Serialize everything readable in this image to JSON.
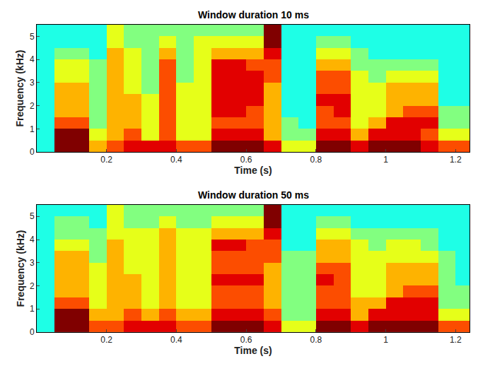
{
  "chart_data": [
    {
      "type": "heatmap",
      "title": "Window duration 10 ms",
      "x_label": "Time (s)",
      "y_label": "Frequency (kHz)",
      "color": "Jet",
      "zlim": [
        0,
        10
      ],
      "xlim": [
        0,
        1.24
      ],
      "ylim": [
        0,
        5.5
      ],
      "xticks": [
        0.2,
        0.4,
        0.6,
        0.8,
        1,
        1.2
      ],
      "yticks": [
        0,
        1,
        2,
        3,
        4,
        5
      ],
      "x": [
        0.025,
        0.075,
        0.125,
        0.175,
        0.225,
        0.275,
        0.325,
        0.375,
        0.425,
        0.475,
        0.525,
        0.575,
        0.625,
        0.675,
        0.725,
        0.775,
        0.825,
        0.875,
        0.925,
        0.975,
        1.025,
        1.075,
        1.125,
        1.175,
        1.225
      ],
      "y": [
        0.25,
        0.75,
        1.25,
        1.75,
        2.25,
        2.75,
        3.25,
        3.75,
        4.25,
        4.75,
        5.25
      ],
      "z": [
        [
          4,
          10,
          10,
          7,
          8,
          9,
          9,
          9,
          8,
          8,
          10,
          10,
          10,
          9,
          6,
          6,
          10,
          10,
          9,
          10,
          10,
          10,
          9,
          8,
          8
        ],
        [
          4,
          10,
          10,
          6,
          7,
          8,
          6,
          8,
          6,
          6,
          9,
          9,
          9,
          7,
          5,
          5,
          9,
          9,
          7,
          9,
          9,
          9,
          8,
          6,
          6
        ],
        [
          4,
          8,
          8,
          5,
          7,
          7,
          6,
          8,
          6,
          6,
          8,
          8,
          8,
          7,
          5,
          4,
          8,
          8,
          6,
          7,
          9,
          9,
          9,
          5,
          5
        ],
        [
          4,
          7,
          7,
          5,
          7,
          7,
          6,
          8,
          6,
          6,
          9,
          9,
          8,
          7,
          4,
          4,
          8,
          9,
          6,
          6,
          7,
          8,
          8,
          5,
          5
        ],
        [
          4,
          7,
          7,
          5,
          7,
          7,
          6,
          8,
          6,
          6,
          9,
          9,
          9,
          7,
          4,
          4,
          9,
          9,
          6,
          6,
          7,
          7,
          7,
          4,
          4
        ],
        [
          4,
          7,
          7,
          5,
          7,
          6,
          5,
          8,
          6,
          6,
          9,
          9,
          9,
          7,
          4,
          4,
          8,
          8,
          6,
          6,
          7,
          7,
          7,
          4,
          4
        ],
        [
          4,
          6,
          6,
          5,
          7,
          6,
          5,
          8,
          5,
          6,
          9,
          9,
          9,
          8,
          4,
          4,
          8,
          8,
          6,
          5,
          6,
          6,
          6,
          4,
          4
        ],
        [
          4,
          6,
          6,
          5,
          7,
          6,
          5,
          8,
          5,
          6,
          9,
          9,
          8,
          8,
          4,
          4,
          7,
          7,
          5,
          5,
          5,
          5,
          5,
          4,
          4
        ],
        [
          4,
          5,
          5,
          4,
          7,
          6,
          5,
          7,
          5,
          6,
          7,
          7,
          7,
          9,
          4,
          4,
          6,
          6,
          5,
          4,
          4,
          4,
          4,
          4,
          4
        ],
        [
          4,
          4,
          4,
          4,
          6,
          5,
          5,
          6,
          5,
          6,
          6,
          6,
          6,
          10,
          4,
          4,
          5,
          5,
          4,
          4,
          4,
          4,
          4,
          4,
          4
        ],
        [
          4,
          4,
          4,
          4,
          6,
          5,
          5,
          5,
          5,
          5,
          5,
          5,
          5,
          10,
          4,
          4,
          4,
          4,
          4,
          4,
          4,
          4,
          4,
          4,
          4
        ]
      ]
    },
    {
      "type": "heatmap",
      "title": "Window duration 50 ms",
      "x_label": "Time (s)",
      "y_label": "Frequency (kHz)",
      "color": "Jet",
      "zlim": [
        0,
        10
      ],
      "xlim": [
        0,
        1.24
      ],
      "ylim": [
        0,
        5.5
      ],
      "xticks": [
        0.2,
        0.4,
        0.6,
        0.8,
        1,
        1.2
      ],
      "yticks": [
        0,
        1,
        2,
        3,
        4,
        5
      ],
      "x": [
        0.025,
        0.075,
        0.125,
        0.175,
        0.225,
        0.275,
        0.325,
        0.375,
        0.425,
        0.475,
        0.525,
        0.575,
        0.625,
        0.675,
        0.725,
        0.775,
        0.825,
        0.875,
        0.925,
        0.975,
        1.025,
        1.075,
        1.125,
        1.175,
        1.225
      ],
      "y": [
        0.25,
        0.75,
        1.25,
        1.75,
        2.25,
        2.75,
        3.25,
        3.75,
        4.25,
        4.75,
        5.25
      ],
      "z": [
        [
          4,
          10,
          10,
          8,
          8,
          9,
          9,
          9,
          8,
          8,
          10,
          10,
          10,
          9,
          6,
          6,
          10,
          10,
          9,
          10,
          10,
          10,
          10,
          8,
          8
        ],
        [
          4,
          10,
          10,
          7,
          7,
          8,
          7,
          8,
          7,
          7,
          9,
          9,
          9,
          8,
          5,
          5,
          9,
          9,
          7,
          9,
          9,
          9,
          9,
          6,
          6
        ],
        [
          4,
          8,
          8,
          6,
          7,
          7,
          6,
          7,
          6,
          6,
          8,
          8,
          8,
          7,
          5,
          5,
          8,
          8,
          7,
          7,
          9,
          9,
          9,
          5,
          5
        ],
        [
          4,
          7,
          7,
          6,
          7,
          7,
          6,
          7,
          6,
          6,
          8,
          8,
          8,
          7,
          5,
          5,
          8,
          8,
          6,
          6,
          7,
          8,
          8,
          5,
          5
        ],
        [
          4,
          7,
          7,
          6,
          7,
          7,
          6,
          7,
          6,
          6,
          9,
          9,
          9,
          7,
          5,
          5,
          9,
          8,
          6,
          6,
          7,
          7,
          7,
          5,
          4
        ],
        [
          4,
          7,
          7,
          6,
          7,
          6,
          6,
          7,
          6,
          6,
          8,
          8,
          8,
          7,
          5,
          5,
          8,
          8,
          6,
          6,
          7,
          7,
          7,
          5,
          4
        ],
        [
          4,
          7,
          7,
          5,
          7,
          6,
          6,
          7,
          6,
          6,
          8,
          8,
          8,
          8,
          5,
          5,
          7,
          7,
          6,
          6,
          6,
          6,
          6,
          5,
          4
        ],
        [
          4,
          6,
          6,
          5,
          7,
          6,
          6,
          7,
          6,
          6,
          9,
          9,
          8,
          8,
          4,
          4,
          7,
          7,
          6,
          5,
          6,
          6,
          5,
          4,
          4
        ],
        [
          4,
          5,
          5,
          5,
          6,
          6,
          6,
          7,
          6,
          6,
          7,
          7,
          7,
          9,
          4,
          4,
          6,
          6,
          5,
          5,
          5,
          5,
          5,
          4,
          4
        ],
        [
          4,
          5,
          5,
          4,
          6,
          5,
          5,
          6,
          5,
          5,
          6,
          6,
          6,
          10,
          4,
          4,
          5,
          5,
          4,
          4,
          4,
          4,
          4,
          4,
          4
        ],
        [
          4,
          4,
          4,
          4,
          6,
          5,
          5,
          5,
          5,
          5,
          5,
          5,
          5,
          10,
          4,
          4,
          4,
          4,
          4,
          4,
          4,
          4,
          4,
          4,
          4
        ]
      ]
    }
  ]
}
